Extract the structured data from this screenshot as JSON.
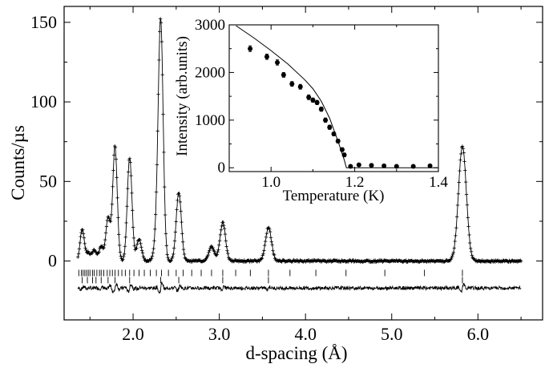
{
  "chart_data": [
    {
      "type": "line",
      "xlabel": "d-spacing (Å)",
      "ylabel": "Counts/µs",
      "xlim": [
        1.2,
        6.75
      ],
      "ylim": [
        -37,
        160
      ],
      "x_ticks": [
        2.0,
        3.0,
        4.0,
        5.0,
        6.0
      ],
      "x_tick_labels": [
        "2.0",
        "3.0",
        "4.0",
        "5.0",
        "6.0"
      ],
      "y_ticks": [
        0,
        50,
        100,
        150
      ],
      "y_tick_labels": [
        "0",
        "50",
        "100",
        "150"
      ],
      "x_range": [
        1.36,
        6.5
      ],
      "background": 0,
      "peak_width": 0.022,
      "peaks": [
        {
          "d": 1.41,
          "height": 20
        },
        {
          "d": 1.48,
          "height": 5
        },
        {
          "d": 1.55,
          "height": 7
        },
        {
          "d": 1.63,
          "height": 9
        },
        {
          "d": 1.71,
          "height": 27
        },
        {
          "d": 1.79,
          "height": 72
        },
        {
          "d": 1.96,
          "height": 65
        },
        {
          "d": 2.07,
          "height": 14
        },
        {
          "d": 2.27,
          "height": 11
        },
        {
          "d": 2.32,
          "height": 150
        },
        {
          "d": 2.53,
          "height": 43
        },
        {
          "d": 2.91,
          "height": 9
        },
        {
          "d": 3.04,
          "height": 24
        },
        {
          "d": 3.57,
          "height": 21
        },
        {
          "d": 5.82,
          "height": 72
        }
      ],
      "reflection_ticks_row1": [
        1.37,
        1.4,
        1.42,
        1.44,
        1.46,
        1.48,
        1.5,
        1.53,
        1.55,
        1.58,
        1.61,
        1.63,
        1.66,
        1.7,
        1.73,
        1.76,
        1.79,
        1.83,
        1.87,
        1.91,
        1.96,
        2.01,
        2.07,
        2.13,
        2.2,
        2.27,
        2.33,
        2.41,
        2.5,
        2.58,
        2.68,
        2.79,
        2.91,
        3.04,
        3.19,
        3.36,
        3.57,
        3.82,
        4.12,
        4.47,
        4.92,
        5.38,
        5.82
      ],
      "reflection_ticks_row2": [
        1.41,
        1.47,
        1.53,
        1.57,
        1.63,
        1.71,
        1.79,
        1.96,
        2.32,
        2.53,
        3.04,
        3.57,
        5.82
      ],
      "difference_offset": -17
    },
    {
      "type": "scatter",
      "xlabel": "Temperature (K)",
      "ylabel": "Intensity (arb.units)",
      "xlim": [
        0.9,
        1.4
      ],
      "ylim": [
        -80,
        3000
      ],
      "x_ticks": [
        1.0,
        1.2,
        1.4
      ],
      "x_tick_labels": [
        "1.0",
        "1.2",
        "1.4"
      ],
      "y_ticks": [
        0,
        1000,
        2000,
        3000
      ],
      "y_tick_labels": [
        "0",
        "1000",
        "2000",
        "3000"
      ],
      "series": [
        {
          "x": [
            0.95,
            0.99,
            1.015,
            1.03,
            1.05,
            1.07,
            1.09,
            1.1,
            1.11,
            1.12,
            1.13,
            1.14,
            1.15,
            1.16,
            1.17,
            1.175,
            1.19,
            1.21,
            1.24,
            1.27,
            1.3,
            1.34,
            1.38
          ],
          "y": [
            2500,
            2330,
            2210,
            1950,
            1760,
            1700,
            1480,
            1420,
            1370,
            1230,
            1000,
            850,
            710,
            560,
            380,
            270,
            30,
            60,
            50,
            40,
            30,
            30,
            40
          ],
          "errors": [
            60,
            55,
            55,
            50,
            50,
            50,
            50,
            45,
            45,
            45,
            45,
            45,
            40,
            40,
            40,
            40,
            30,
            30,
            30,
            30,
            30,
            30,
            30
          ]
        },
        {
          "x": [
            0.9,
            0.92,
            0.96,
            1.0,
            1.04,
            1.08,
            1.1,
            1.12,
            1.14,
            1.16,
            1.175,
            1.18,
            1.4
          ],
          "y": [
            3100,
            2960,
            2720,
            2460,
            2180,
            1850,
            1660,
            1400,
            1040,
            560,
            160,
            0,
            0
          ]
        }
      ]
    }
  ]
}
